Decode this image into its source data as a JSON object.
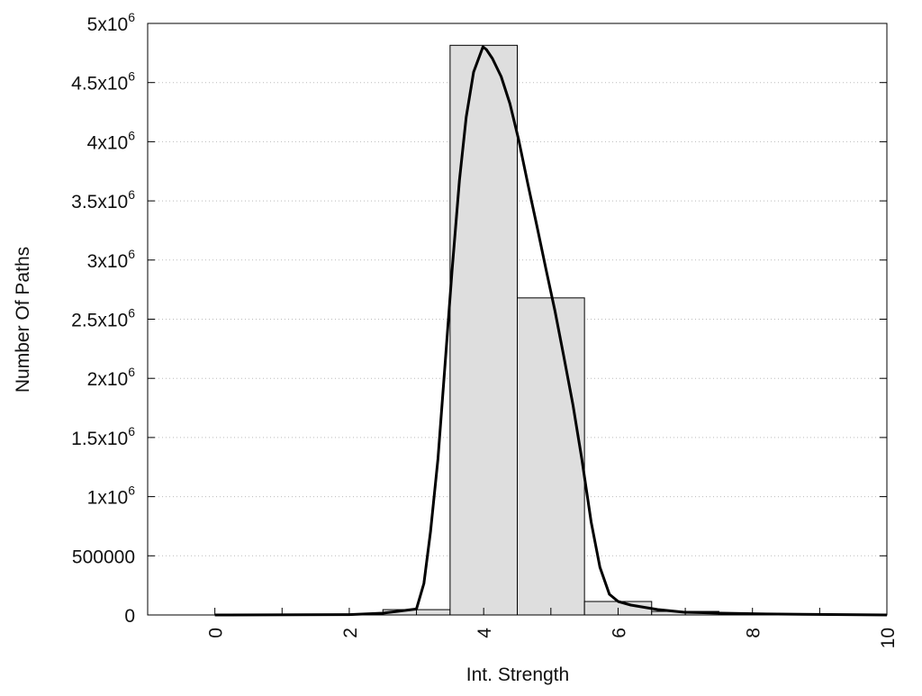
{
  "chart_data": {
    "type": "bar",
    "title": "",
    "xlabel": "Int. Strength",
    "ylabel": "Number Of Paths",
    "xlim": [
      -1,
      10
    ],
    "ylim": [
      0,
      5000000
    ],
    "grid": "horizontal dotted",
    "x_ticks": [
      0,
      2,
      4,
      6,
      8,
      10
    ],
    "x_minor_ticks": [
      1,
      3,
      5,
      7,
      9
    ],
    "x_tick_labels": [
      "0",
      "2",
      "4",
      "6",
      "8",
      "10"
    ],
    "y_ticks": [
      0,
      500000,
      1000000,
      1500000,
      2000000,
      2500000,
      3000000,
      3500000,
      4000000,
      4500000,
      5000000
    ],
    "y_tick_labels": [
      {
        "base": "0",
        "exp": ""
      },
      {
        "base": "500000",
        "exp": ""
      },
      {
        "base": "1x10",
        "exp": "6"
      },
      {
        "base": "1.5x10",
        "exp": "6"
      },
      {
        "base": "2x10",
        "exp": "6"
      },
      {
        "base": "2.5x10",
        "exp": "6"
      },
      {
        "base": "3x10",
        "exp": "6"
      },
      {
        "base": "3.5x10",
        "exp": "6"
      },
      {
        "base": "4x10",
        "exp": "6"
      },
      {
        "base": "4.5x10",
        "exp": "6"
      },
      {
        "base": "5x10",
        "exp": "6"
      }
    ],
    "bars": {
      "name": "histogram",
      "bin_width": 1,
      "centers": [
        3,
        4,
        5,
        6,
        7
      ],
      "values": [
        45000,
        4815000,
        2680000,
        114000,
        30000
      ],
      "color": "#dedede"
    },
    "series": [
      {
        "name": "fit curve",
        "type": "line",
        "color": "#000000",
        "x": [
          0,
          2,
          2.5,
          3.0,
          3.11,
          3.21,
          3.32,
          3.42,
          3.53,
          3.64,
          3.74,
          3.85,
          3.99,
          4.04,
          4.13,
          4.26,
          4.39,
          4.52,
          4.66,
          4.79,
          4.93,
          5.06,
          5.19,
          5.33,
          5.46,
          5.6,
          5.73,
          5.87,
          6.0,
          6.19,
          6.59,
          6.99,
          7.53,
          8.2,
          10
        ],
        "y": [
          0,
          3000,
          15000,
          50000,
          266000,
          708000,
          1317000,
          2078000,
          2915000,
          3676000,
          4209000,
          4589000,
          4802000,
          4779000,
          4703000,
          4551000,
          4323000,
          4018000,
          3638000,
          3295000,
          2915000,
          2572000,
          2192000,
          1773000,
          1317000,
          784000,
          403000,
          175000,
          114000,
          84000,
          46000,
          23000,
          15000,
          8000,
          0
        ]
      }
    ]
  }
}
